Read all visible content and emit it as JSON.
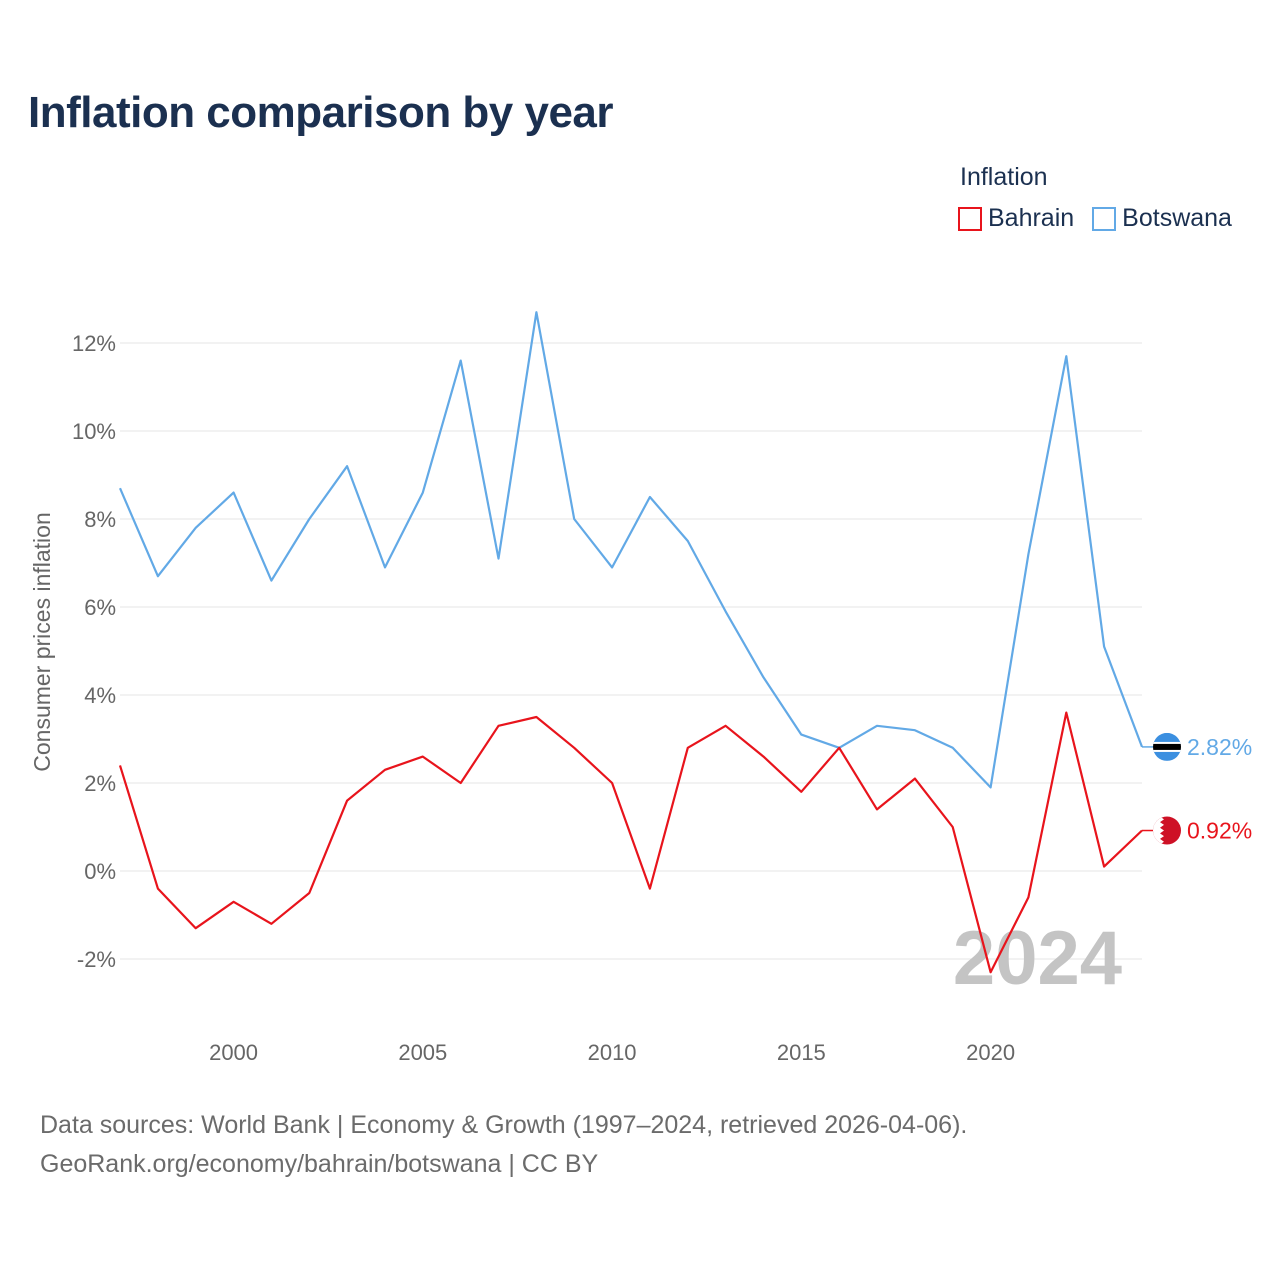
{
  "title": "Inflation comparison by year",
  "legend": {
    "title": "Inflation",
    "items": [
      {
        "label": "Bahrain",
        "color": "#e8141c"
      },
      {
        "label": "Botswana",
        "color": "#62a9e6"
      }
    ]
  },
  "source": {
    "line1": "Data sources: World Bank | Economy & Growth (1997–2024, retrieved 2026-04-06).",
    "line2": "GeoRank.org/economy/bahrain/botswana | CC BY"
  },
  "chart_data": {
    "type": "line",
    "title": "Inflation comparison by year",
    "xlabel": "",
    "ylabel": "Consumer prices inflation",
    "xlim": [
      1997,
      2024
    ],
    "ylim": [
      -2.6,
      13.5
    ],
    "yticks": [
      -2,
      0,
      2,
      4,
      6,
      8,
      10,
      12
    ],
    "ytick_labels": [
      "-2%",
      "0%",
      "2%",
      "4%",
      "6%",
      "8%",
      "10%",
      "12%"
    ],
    "xticks": [
      2000,
      2005,
      2010,
      2015,
      2020
    ],
    "xtick_labels": [
      "2000",
      "2005",
      "2010",
      "2015",
      "2020"
    ],
    "grid": true,
    "legend_position": "top-right",
    "year_label": "2024",
    "x": [
      1997,
      1998,
      1999,
      2000,
      2001,
      2002,
      2003,
      2004,
      2005,
      2006,
      2007,
      2008,
      2009,
      2010,
      2011,
      2012,
      2013,
      2014,
      2015,
      2016,
      2017,
      2018,
      2019,
      2020,
      2021,
      2022,
      2023,
      2024
    ],
    "series": [
      {
        "name": "Botswana",
        "color": "#62a9e6",
        "values": [
          8.7,
          6.7,
          7.8,
          8.6,
          6.6,
          8.0,
          9.2,
          6.9,
          8.6,
          11.6,
          7.1,
          12.7,
          8.0,
          6.9,
          8.5,
          7.5,
          5.9,
          4.4,
          3.1,
          2.8,
          3.3,
          3.2,
          2.8,
          1.9,
          7.2,
          11.7,
          5.1,
          2.82
        ],
        "end_label": "2.82%"
      },
      {
        "name": "Bahrain",
        "color": "#e8141c",
        "values": [
          2.4,
          -0.4,
          -1.3,
          -0.7,
          -1.2,
          -0.5,
          1.6,
          2.3,
          2.6,
          2.0,
          3.3,
          3.5,
          2.8,
          2.0,
          -0.4,
          2.8,
          3.3,
          2.6,
          1.8,
          2.8,
          1.4,
          2.1,
          1.0,
          -2.3,
          -0.6,
          3.6,
          0.1,
          0.92
        ],
        "end_label": "0.92%"
      }
    ]
  }
}
